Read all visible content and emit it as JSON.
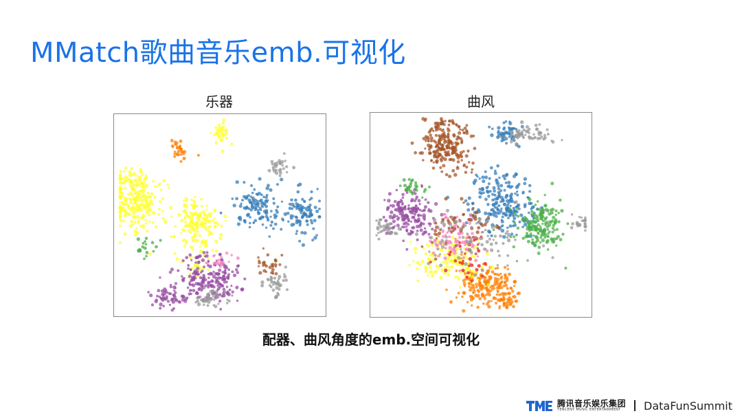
{
  "slide": {
    "title": "MMatch歌曲音乐emb.可视化",
    "caption": "配器、曲风角度的emb.空间可视化"
  },
  "footer": {
    "brand_cn": "腾讯音乐娱乐集团",
    "brand_en": "TENCENT MUSIC ENTERTAINMENT",
    "summit": "DataFunSummit",
    "logo_icon": "tme-logo-icon"
  },
  "chart_data": [
    {
      "type": "scatter",
      "title": "乐器",
      "xlim": [
        0,
        100
      ],
      "ylim": [
        0,
        100
      ],
      "grid": false,
      "clusters": [
        {
          "color": "#ffff33",
          "center": [
            8,
            58
          ],
          "spread": [
            6,
            8
          ],
          "count": 260
        },
        {
          "color": "#ffff33",
          "center": [
            38,
            46
          ],
          "spread": [
            6,
            7
          ],
          "count": 170
        },
        {
          "color": "#ffff33",
          "center": [
            50,
            93
          ],
          "spread": [
            2,
            3
          ],
          "count": 40
        },
        {
          "color": "#ffff33",
          "center": [
            38,
            25
          ],
          "spread": [
            3,
            3
          ],
          "count": 30
        },
        {
          "color": "#ff7f00",
          "center": [
            30,
            84
          ],
          "spread": [
            2,
            3
          ],
          "count": 32
        },
        {
          "color": "#377eb8",
          "center": [
            69,
            54
          ],
          "spread": [
            6,
            6
          ],
          "count": 120
        },
        {
          "color": "#377eb8",
          "center": [
            91,
            50
          ],
          "spread": [
            4,
            6
          ],
          "count": 95
        },
        {
          "color": "#999999",
          "center": [
            80,
            75
          ],
          "spread": [
            3,
            2
          ],
          "count": 28
        },
        {
          "color": "#999999",
          "center": [
            78,
            15
          ],
          "spread": [
            3,
            4
          ],
          "count": 38
        },
        {
          "color": "#a65628",
          "center": [
            75,
            25
          ],
          "spread": [
            3,
            3
          ],
          "count": 30
        },
        {
          "color": "#984ea3",
          "center": [
            44,
            18
          ],
          "spread": [
            8,
            6
          ],
          "count": 200
        },
        {
          "color": "#984ea3",
          "center": [
            26,
            8
          ],
          "spread": [
            5,
            3
          ],
          "count": 60
        },
        {
          "color": "#999999",
          "center": [
            46,
            7
          ],
          "spread": [
            5,
            3
          ],
          "count": 40
        },
        {
          "color": "#4daf4a",
          "center": [
            14,
            34
          ],
          "spread": [
            3,
            2
          ],
          "count": 18
        },
        {
          "color": "#f781bf",
          "center": [
            50,
            27
          ],
          "spread": [
            4,
            2
          ],
          "count": 18
        }
      ]
    },
    {
      "type": "scatter",
      "title": "曲风",
      "xlim": [
        0,
        100
      ],
      "ylim": [
        0,
        100
      ],
      "grid": false,
      "clusters": [
        {
          "color": "#a65628",
          "center": [
            33,
            86
          ],
          "spread": [
            6,
            7
          ],
          "count": 230
        },
        {
          "color": "#377eb8",
          "center": [
            62,
            92
          ],
          "spread": [
            3,
            3
          ],
          "count": 50
        },
        {
          "color": "#999999",
          "center": [
            72,
            91
          ],
          "spread": [
            6,
            2
          ],
          "count": 60
        },
        {
          "color": "#377eb8",
          "center": [
            60,
            55
          ],
          "spread": [
            8,
            8
          ],
          "count": 230
        },
        {
          "color": "#4daf4a",
          "center": [
            78,
            44
          ],
          "spread": [
            6,
            6
          ],
          "count": 180
        },
        {
          "color": "#984ea3",
          "center": [
            15,
            50
          ],
          "spread": [
            6,
            6
          ],
          "count": 180
        },
        {
          "color": "#999999",
          "center": [
            5,
            43
          ],
          "spread": [
            3,
            2
          ],
          "count": 28
        },
        {
          "color": "#999999",
          "center": [
            97,
            46
          ],
          "spread": [
            2,
            2
          ],
          "count": 24
        },
        {
          "color": "#ff7f00",
          "center": [
            52,
            14
          ],
          "spread": [
            7,
            5
          ],
          "count": 170
        },
        {
          "color": "#ff7f00",
          "center": [
            62,
            6
          ],
          "spread": [
            3,
            2
          ],
          "count": 40
        },
        {
          "color": "#ffff33",
          "center": [
            35,
            26
          ],
          "spread": [
            8,
            5
          ],
          "count": 150
        },
        {
          "color": "#f781bf",
          "center": [
            38,
            38
          ],
          "spread": [
            6,
            6
          ],
          "count": 90
        },
        {
          "color": "#e41a1c",
          "center": [
            44,
            30
          ],
          "spread": [
            5,
            5
          ],
          "count": 30
        },
        {
          "color": "#a65628",
          "center": [
            40,
            45
          ],
          "spread": [
            8,
            6
          ],
          "count": 60
        },
        {
          "color": "#999999",
          "center": [
            45,
            38
          ],
          "spread": [
            12,
            8
          ],
          "count": 90
        },
        {
          "color": "#4daf4a",
          "center": [
            18,
            64
          ],
          "spread": [
            3,
            2
          ],
          "count": 25
        }
      ]
    }
  ]
}
